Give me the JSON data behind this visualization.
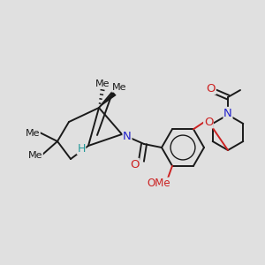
{
  "bg_color": "#e0e0e0",
  "bond_color": "#1a1a1a",
  "N_color": "#2222cc",
  "O_color": "#cc2222",
  "H_color": "#229999",
  "lw": 1.4,
  "fig_width": 3.0,
  "fig_height": 3.0,
  "dpi": 100,
  "xlim": [
    0,
    300
  ],
  "ylim": [
    0,
    300
  ]
}
